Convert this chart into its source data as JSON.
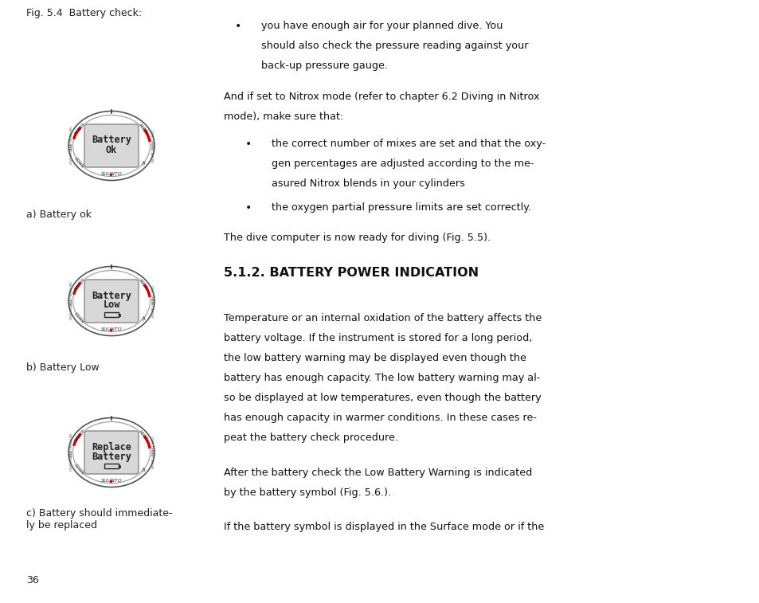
{
  "bg_color": "#ffffff",
  "left_col": {
    "fig_label": "Fig. 5.4  Battery check:",
    "watches": [
      {
        "label": "a) Battery ok",
        "display_lines": [
          "Battery",
          "Ok"
        ],
        "show_battery_icon": false
      },
      {
        "label": "b) Battery Low",
        "display_lines": [
          "Battery",
          "Low"
        ],
        "show_battery_icon": true
      },
      {
        "label": "c) Battery should immediate-\nly be replaced",
        "display_lines": [
          "Replace",
          "Battery"
        ],
        "show_battery_icon": true
      }
    ],
    "page_num": "36"
  },
  "right_col": {
    "bullet1_lines": [
      "you have enough air for your planned dive. You",
      "should also check the pressure reading against your",
      "back-up pressure gauge."
    ],
    "para1_lines": [
      "And if set to Nitrox mode (refer to chapter 6.2 Diving in Nitrox",
      "mode), make sure that:"
    ],
    "bullet2_lines": [
      "the correct number of mixes are set and that the oxy-",
      "gen percentages are adjusted according to the me-",
      "asured Nitrox blends in your cylinders"
    ],
    "bullet3": "the oxygen partial pressure limits are set correctly.",
    "para2": "The dive computer is now ready for diving (Fig. 5.5).",
    "section_title": "5.1.2. BATTERY POWER INDICATION",
    "para3_lines": [
      "Temperature or an internal oxidation of the battery affects the",
      "battery voltage. If the instrument is stored for a long period,",
      "the low battery warning may be displayed even though the",
      "battery has enough capacity. The low battery warning may al-",
      "so be displayed at low temperatures, even though the battery",
      "has enough capacity in warmer conditions. In these cases re-",
      "peat the battery check procedure."
    ],
    "para4_lines": [
      "After the battery check the Low Battery Warning is indicated",
      "by the battery symbol (Fig. 5.6.)."
    ],
    "para5": "If the battery symbol is displayed in the Surface mode or if the"
  },
  "watch_colors": {
    "outer_ellipse_fill": "#ffffff",
    "outer_ellipse_edge": "#555555",
    "inner_ellipse_fill": "#ffffff",
    "inner_ellipse_edge": "#999999",
    "screen_fill": "#d8d8d8",
    "screen_edge": "#888888",
    "text_color": "#222222",
    "red_accent": "#cc0000",
    "suunto_color": "#333333"
  }
}
